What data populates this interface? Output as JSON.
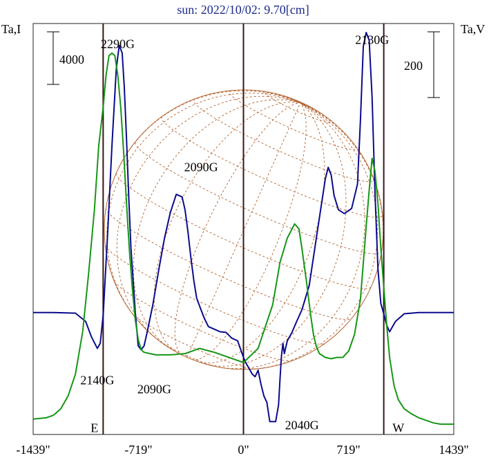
{
  "title": "sun: 2022/10/02: 9.70[cm]",
  "left_axis_label": "Ta,I",
  "right_axis_label": "Ta,V",
  "colors": {
    "intensity": "#0a0a8c",
    "polarization": "#159615",
    "grid": "#b4622e",
    "markers": "#3a1414",
    "frame": "#222222"
  },
  "chart_data": {
    "type": "line",
    "title": "sun: 2022/10/02: 9.70[cm]",
    "xlabel": "",
    "ylabel_left": "Ta,I",
    "ylabel_right": "Ta,V",
    "xlim": [
      -1439,
      1439
    ],
    "ylim": [
      -150,
      3050
    ],
    "x_ticks": [
      {
        "value": -1439,
        "label": "-1439\""
      },
      {
        "value": -719,
        "label": "-719\""
      },
      {
        "value": 0,
        "label": "0\""
      },
      {
        "value": 719,
        "label": "719\""
      },
      {
        "value": 1439,
        "label": "1439\""
      }
    ],
    "vertical_markers": [
      {
        "x": -960,
        "label": "E"
      },
      {
        "x": 0,
        "label": ""
      },
      {
        "x": 960,
        "label": "W"
      }
    ],
    "scale_bars": [
      {
        "label": "4000",
        "side": "left",
        "span": 1000
      },
      {
        "label": "200",
        "side": "right",
        "span": 1400
      }
    ],
    "series": [
      {
        "key": "intensity",
        "x": [
          -1439,
          -1300,
          -1150,
          -1080,
          -1040,
          -1000,
          -980,
          -960,
          -930,
          -900,
          -870,
          -850,
          -830,
          -815,
          -800,
          -785,
          -770,
          -740,
          -720,
          -700,
          -680,
          -660,
          -620,
          -580,
          -540,
          -500,
          -460,
          -420,
          -400,
          -380,
          -360,
          -340,
          -320,
          -300,
          -270,
          -240,
          -200,
          -160,
          -120,
          -80,
          -40,
          0,
          20,
          40,
          60,
          80,
          100,
          120,
          140,
          160,
          180,
          200,
          220,
          240,
          250,
          260,
          270,
          280,
          300,
          330,
          360,
          400,
          450,
          500,
          560,
          580,
          600,
          620,
          650,
          690,
          740,
          780,
          800,
          820,
          840,
          860,
          880,
          900,
          920,
          940,
          960,
          980,
          1000,
          1040,
          1100,
          1200,
          1439
        ],
        "y": [
          800,
          800,
          795,
          730,
          610,
          520,
          560,
          780,
          1400,
          2100,
          2700,
          2880,
          2820,
          2550,
          2150,
          1700,
          1300,
          800,
          540,
          510,
          540,
          640,
          860,
          1130,
          1380,
          1580,
          1720,
          1700,
          1600,
          1430,
          1230,
          1050,
          910,
          850,
          760,
          690,
          670,
          650,
          645,
          600,
          580,
          450,
          400,
          360,
          320,
          300,
          350,
          240,
          150,
          100,
          -50,
          -50,
          -50,
          80,
          280,
          460,
          560,
          480,
          580,
          640,
          720,
          820,
          1010,
          1390,
          1840,
          1930,
          1870,
          1710,
          1600,
          1570,
          1610,
          1800,
          2290,
          2870,
          2980,
          2920,
          2480,
          1740,
          1140,
          870,
          790,
          700,
          650,
          730,
          790,
          800,
          800
        ]
      },
      {
        "key": "polarization",
        "x": [
          -1439,
          -1350,
          -1300,
          -1250,
          -1200,
          -1150,
          -1100,
          -1060,
          -1020,
          -990,
          -960,
          -940,
          -920,
          -900,
          -880,
          -860,
          -840,
          -820,
          -800,
          -780,
          -760,
          -740,
          -720,
          -700,
          -680,
          -640,
          -600,
          -560,
          -500,
          -400,
          -300,
          -200,
          -100,
          0,
          100,
          200,
          250,
          300,
          350,
          380,
          400,
          430,
          460,
          480,
          500,
          520,
          560,
          600,
          640,
          680,
          720,
          760,
          800,
          840,
          860,
          880,
          900,
          920,
          940,
          960,
          980,
          1000,
          1030,
          1060,
          1100,
          1150,
          1200,
          1250,
          1300,
          1350,
          1439
        ],
        "y": [
          -30,
          -20,
          0,
          50,
          150,
          320,
          650,
          1100,
          1600,
          2100,
          2400,
          2650,
          2800,
          2820,
          2800,
          2650,
          2400,
          2050,
          1650,
          1280,
          980,
          740,
          590,
          510,
          490,
          480,
          470,
          470,
          470,
          480,
          520,
          490,
          450,
          410,
          520,
          860,
          1190,
          1380,
          1490,
          1450,
          1300,
          1050,
          780,
          620,
          530,
          480,
          450,
          440,
          450,
          450,
          500,
          630,
          900,
          1470,
          1750,
          2000,
          1900,
          1650,
          1300,
          1000,
          700,
          450,
          230,
          120,
          50,
          10,
          -20,
          -40,
          -60,
          -70,
          -70
        ]
      }
    ],
    "annotations": [
      {
        "text": "2290G",
        "x": -860,
        "y": 2860
      },
      {
        "text": "2130G",
        "x": 880,
        "y": 2890
      },
      {
        "text": "2090G",
        "x": -290,
        "y": 1900
      },
      {
        "text": "2140G",
        "x": -1000,
        "y": 240
      },
      {
        "text": "2090G",
        "x": -610,
        "y": 170
      },
      {
        "text": "2040G",
        "x": 400,
        "y": -110
      },
      {
        "text": "E",
        "x": -1020,
        "y": -130
      },
      {
        "text": "W",
        "x": 1060,
        "y": -130
      }
    ]
  }
}
